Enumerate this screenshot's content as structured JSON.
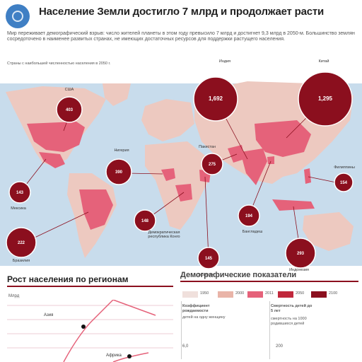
{
  "header": {
    "title": "Население Земли достигло 7 млрд и продолжает расти",
    "intro": "Мир переживает демографический взрыв: число жителей планеты в этом году превысило 7 млрд и достигнет 9,3 млрд в 2050-м. Большинство землян сосредоточено в наименее развитых странах, не имеющих достаточных ресурсов для поддержки растущего населения.",
    "map_note": "Страны с наибольшей численностью населения в 2050 г."
  },
  "map": {
    "colors": {
      "ocean": "#c8dcec",
      "land": "#edc9c0",
      "highlight": "#e5627a",
      "bubble": "#8b0f1e",
      "bubble_text": "#ffffff"
    },
    "bubbles": [
      {
        "id": "india",
        "value": "1,692",
        "label": "Индия"
      },
      {
        "id": "china",
        "value": "1,295",
        "label": "Китай"
      },
      {
        "id": "usa",
        "value": "403",
        "label": "США"
      },
      {
        "id": "nigeria",
        "value": "390",
        "label": "Нигерия"
      },
      {
        "id": "pakistan",
        "value": "275",
        "label": "Пакистан"
      },
      {
        "id": "mexico",
        "value": "143",
        "label": "Мексика"
      },
      {
        "id": "brazil",
        "value": "222",
        "label": "Бразилия"
      },
      {
        "id": "drc",
        "value": "148",
        "label": "Демократическая республика Конго"
      },
      {
        "id": "ethiopia",
        "value": "145",
        "label": "Эфиопия"
      },
      {
        "id": "bangladesh",
        "value": "194",
        "label": "Бангладеш"
      },
      {
        "id": "philippines",
        "value": "154",
        "label": "Филиппины"
      },
      {
        "id": "indonesia",
        "value": "293",
        "label": "Индонезия"
      }
    ]
  },
  "growth": {
    "title": "Рост населения по регионам",
    "y_label": "Млрд",
    "series": [
      "Азия",
      "Африка"
    ]
  },
  "demographics": {
    "title": "Демографические показатели",
    "legend": [
      "1950",
      "2000",
      "2011",
      "2050",
      "2100"
    ],
    "legend_colors": [
      "#f0e0dc",
      "#e9b4a8",
      "#e5627a",
      "#c0283c",
      "#8b0f1e"
    ],
    "fertility": {
      "title": "Коэффициент рождаемости",
      "desc": "детей на одну женщину",
      "value": "6,0"
    },
    "mortality": {
      "title": "Смертность детей до 5 лет",
      "desc": "смертность на 1000 родившихся детей",
      "value": "200"
    }
  }
}
